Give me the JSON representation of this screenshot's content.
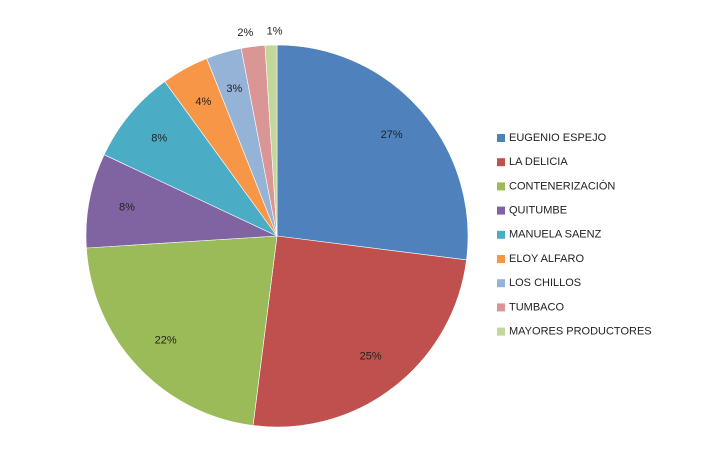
{
  "chart_data": {
    "type": "pie",
    "categories": [
      "EUGENIO ESPEJO",
      "LA DELICIA",
      "CONTENERIZACIÓN",
      "QUITUMBE",
      "MANUELA SAENZ",
      "ELOY ALFARO",
      "LOS CHILLOS",
      "TUMBACO",
      "MAYORES PRODUCTORES"
    ],
    "values": [
      27,
      25,
      22,
      8,
      8,
      4,
      3,
      2,
      1
    ],
    "value_labels": [
      "27%",
      "25%",
      "22%",
      "8%",
      "8%",
      "4%",
      "3%",
      "2%",
      "1%"
    ],
    "colors": [
      "#4f81bd",
      "#c0504d",
      "#9bbb59",
      "#8064a2",
      "#4bacc6",
      "#f79646",
      "#95b3d7",
      "#d99694",
      "#c3d69b"
    ],
    "legend": "right"
  }
}
